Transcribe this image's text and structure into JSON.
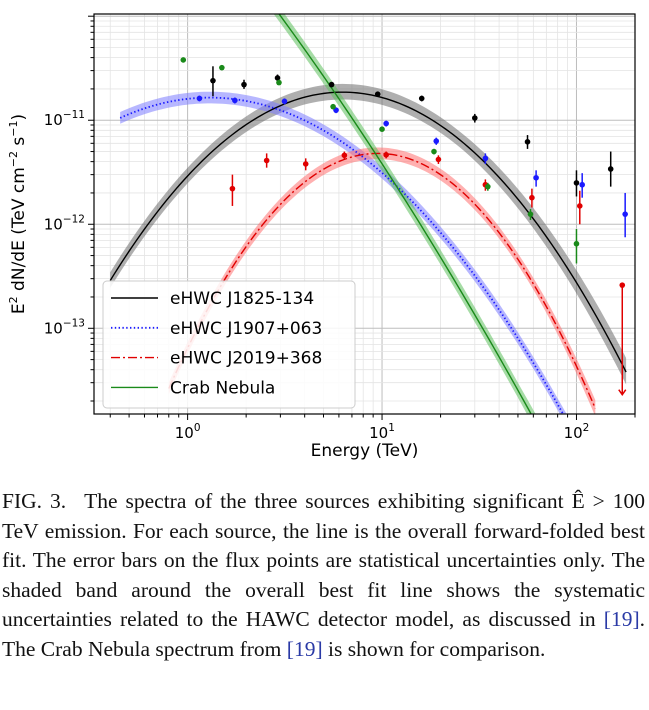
{
  "chart_data": {
    "type": "line",
    "xlabel": "Energy (TeV)",
    "ylabel_parts": [
      "E",
      "2",
      " dN/dE (TeV cm",
      "−2",
      " s",
      "−1",
      ")"
    ],
    "xscale": "log",
    "yscale": "log",
    "xlim": [
      0.33,
      200
    ],
    "ylim": [
      1.5e-14,
      1.05e-10
    ],
    "x_ticks": [
      {
        "value": 1,
        "base": "10",
        "exp": "0"
      },
      {
        "value": 10,
        "base": "10",
        "exp": "1"
      },
      {
        "value": 100,
        "base": "10",
        "exp": "2"
      }
    ],
    "y_ticks": [
      {
        "value": 1e-11,
        "base": "10",
        "exp": "−11"
      },
      {
        "value": 1e-12,
        "base": "10",
        "exp": "−12"
      },
      {
        "value": 1e-13,
        "base": "10",
        "exp": "−13"
      }
    ],
    "grid": true,
    "legend_position": "lower-left",
    "series": [
      {
        "name": "eHWC J1825-134",
        "color": "#000000",
        "band_color": "#6e6e6e",
        "line_style": "solid",
        "fit": {
          "type": "logparabola",
          "x0": 7,
          "y0": 1.85e-11,
          "alpha": 0.12,
          "beta": 0.55
        },
        "band": {
          "xmin": 0.4,
          "xmax": 180,
          "lower_factor": 0.85,
          "upper_factor": 1.2,
          "widen_above": 25,
          "widen_factor": 0.7
        },
        "points": [
          {
            "x": 1.35,
            "y": 2.4e-11,
            "ylo": 1.7e-11,
            "yhi": 3.3e-11
          },
          {
            "x": 1.95,
            "y": 2.2e-11,
            "ylo": 2e-11,
            "yhi": 2.45e-11
          },
          {
            "x": 2.9,
            "y": 2.55e-11,
            "ylo": 2.35e-11,
            "yhi": 2.75e-11
          },
          {
            "x": 5.5,
            "y": 2.2e-11,
            "ylo": 2.1e-11,
            "yhi": 2.3e-11
          },
          {
            "x": 9.5,
            "y": 1.78e-11,
            "ylo": 1.7e-11,
            "yhi": 1.88e-11
          },
          {
            "x": 16,
            "y": 1.62e-11,
            "ylo": 1.52e-11,
            "yhi": 1.72e-11
          },
          {
            "x": 30,
            "y": 1.05e-11,
            "ylo": 9.5e-12,
            "yhi": 1.15e-11
          },
          {
            "x": 56,
            "y": 6.2e-12,
            "ylo": 5.3e-12,
            "yhi": 7.2e-12
          },
          {
            "x": 100,
            "y": 2.5e-12,
            "ylo": 1.85e-12,
            "yhi": 3.3e-12
          },
          {
            "x": 150,
            "y": 3.4e-12,
            "ylo": 2.3e-12,
            "yhi": 5e-12
          }
        ]
      },
      {
        "name": "eHWC J1907+063",
        "color": "#1a1aff",
        "band_color": "#7b7bff",
        "line_style": "dotted",
        "fit": {
          "type": "logparabola",
          "x0": 1.3,
          "y0": 1.65e-11,
          "alpha": 0.0,
          "beta": 0.4
        },
        "band": {
          "xmin": 0.45,
          "xmax": 190,
          "lower_factor": 0.88,
          "upper_factor": 1.14,
          "widen_above": 80,
          "widen_factor": 0.5
        },
        "points": [
          {
            "x": 1.15,
            "y": 1.62e-11,
            "ylo": 1.52e-11,
            "yhi": 1.72e-11
          },
          {
            "x": 1.75,
            "y": 1.55e-11,
            "ylo": 1.45e-11,
            "yhi": 1.65e-11
          },
          {
            "x": 3.15,
            "y": 1.52e-11,
            "ylo": 1.42e-11,
            "yhi": 1.62e-11
          },
          {
            "x": 5.8,
            "y": 1.25e-11,
            "ylo": 1.17e-11,
            "yhi": 1.33e-11
          },
          {
            "x": 10.5,
            "y": 9.3e-12,
            "ylo": 8.7e-12,
            "yhi": 9.9e-12
          },
          {
            "x": 19,
            "y": 6.3e-12,
            "ylo": 5.8e-12,
            "yhi": 6.8e-12
          },
          {
            "x": 34,
            "y": 4.3e-12,
            "ylo": 3.8e-12,
            "yhi": 4.8e-12
          },
          {
            "x": 62,
            "y": 2.8e-12,
            "ylo": 2.3e-12,
            "yhi": 3.3e-12
          },
          {
            "x": 107,
            "y": 2.4e-12,
            "ylo": 1.8e-12,
            "yhi": 3.1e-12
          },
          {
            "x": 178,
            "y": 1.25e-12,
            "ylo": 7.5e-13,
            "yhi": 2e-12
          }
        ]
      },
      {
        "name": "eHWC J2019+368",
        "color": "#e00000",
        "band_color": "#ff7070",
        "line_style": "dashdot",
        "fit": {
          "type": "logparabola",
          "x0": 9.5,
          "y0": 4.8e-12,
          "alpha": 0.0,
          "beta": 0.85
        },
        "band": {
          "xmin": 0.8,
          "xmax": 125,
          "lower_factor": 0.88,
          "upper_factor": 1.14,
          "widen_above": 60,
          "widen_factor": 0.4
        },
        "points": [
          {
            "x": 1.7,
            "y": 2.2e-12,
            "ylo": 1.5e-12,
            "yhi": 3e-12
          },
          {
            "x": 2.55,
            "y": 4.1e-12,
            "ylo": 3.5e-12,
            "yhi": 4.8e-12
          },
          {
            "x": 4.05,
            "y": 3.8e-12,
            "ylo": 3.3e-12,
            "yhi": 4.3e-12
          },
          {
            "x": 6.4,
            "y": 4.6e-12,
            "ylo": 4.2e-12,
            "yhi": 5e-12
          },
          {
            "x": 10.5,
            "y": 4.65e-12,
            "ylo": 4.3e-12,
            "yhi": 5e-12
          },
          {
            "x": 19.5,
            "y": 4.2e-12,
            "ylo": 3.8e-12,
            "yhi": 4.6e-12
          },
          {
            "x": 34,
            "y": 2.4e-12,
            "ylo": 2.1e-12,
            "yhi": 2.7e-12
          },
          {
            "x": 59,
            "y": 1.8e-12,
            "ylo": 1.45e-12,
            "yhi": 2.2e-12
          },
          {
            "x": 104,
            "y": 1.5e-12,
            "ylo": 1e-12,
            "yhi": 2.1e-12
          },
          {
            "x": 172,
            "y": 2.6e-13,
            "ylo": 2.3e-14,
            "yhi": 2.6e-13,
            "upper_limit": true
          }
        ]
      },
      {
        "name": "Crab Nebula",
        "color": "#1a8a1a",
        "band_color": "#5cbf5c",
        "line_style": "solid",
        "fit": {
          "type": "logparabola",
          "x0": 7,
          "y0": 1.05e-11,
          "alpha": 2.79,
          "beta": 0.14
        },
        "band": {
          "xmin": 0.33,
          "xmax": 130,
          "lower_factor": 0.85,
          "upper_factor": 1.18,
          "widen_above": 50,
          "widen_factor": 0.4
        },
        "points": [
          {
            "x": 0.95,
            "y": 3.8e-11,
            "ylo": 3.7e-11,
            "yhi": 3.9e-11
          },
          {
            "x": 1.5,
            "y": 3.2e-11,
            "ylo": 3.1e-11,
            "yhi": 3.3e-11
          },
          {
            "x": 2.95,
            "y": 2.3e-11,
            "ylo": 2.2e-11,
            "yhi": 2.4e-11
          },
          {
            "x": 5.6,
            "y": 1.35e-11,
            "ylo": 1.3e-11,
            "yhi": 1.4e-11
          },
          {
            "x": 10,
            "y": 8.2e-12,
            "ylo": 7.8e-12,
            "yhi": 8.6e-12
          },
          {
            "x": 18.5,
            "y": 5e-12,
            "ylo": 4.7e-12,
            "yhi": 5.3e-12
          },
          {
            "x": 35,
            "y": 2.3e-12,
            "ylo": 2.1e-12,
            "yhi": 2.5e-12
          },
          {
            "x": 58,
            "y": 1.25e-12,
            "ylo": 1.1e-12,
            "yhi": 1.4e-12
          },
          {
            "x": 100,
            "y": 6.5e-13,
            "ylo": 4.2e-13,
            "yhi": 9e-13
          }
        ]
      }
    ]
  },
  "caption": {
    "label": "FIG. 3.",
    "segments": [
      {
        "text": "The spectra of the three sources exhibiting significant ",
        "cite": false
      },
      {
        "text": "Ê > 100 TeV",
        "cite": false,
        "math": true
      },
      {
        "text": " emission. For each source, the line is the overall forward-folded best fit. The error bars on the flux points are statistical uncertainties only. The shaded band around the overall best fit line shows the systematic uncertainties related to the HAWC detector model, as discussed in ",
        "cite": false
      },
      {
        "text": "[19]",
        "cite": true
      },
      {
        "text": ". The Crab Nebula spectrum from ",
        "cite": false
      },
      {
        "text": "[19]",
        "cite": true
      },
      {
        "text": " is shown for comparison.",
        "cite": false
      }
    ]
  }
}
